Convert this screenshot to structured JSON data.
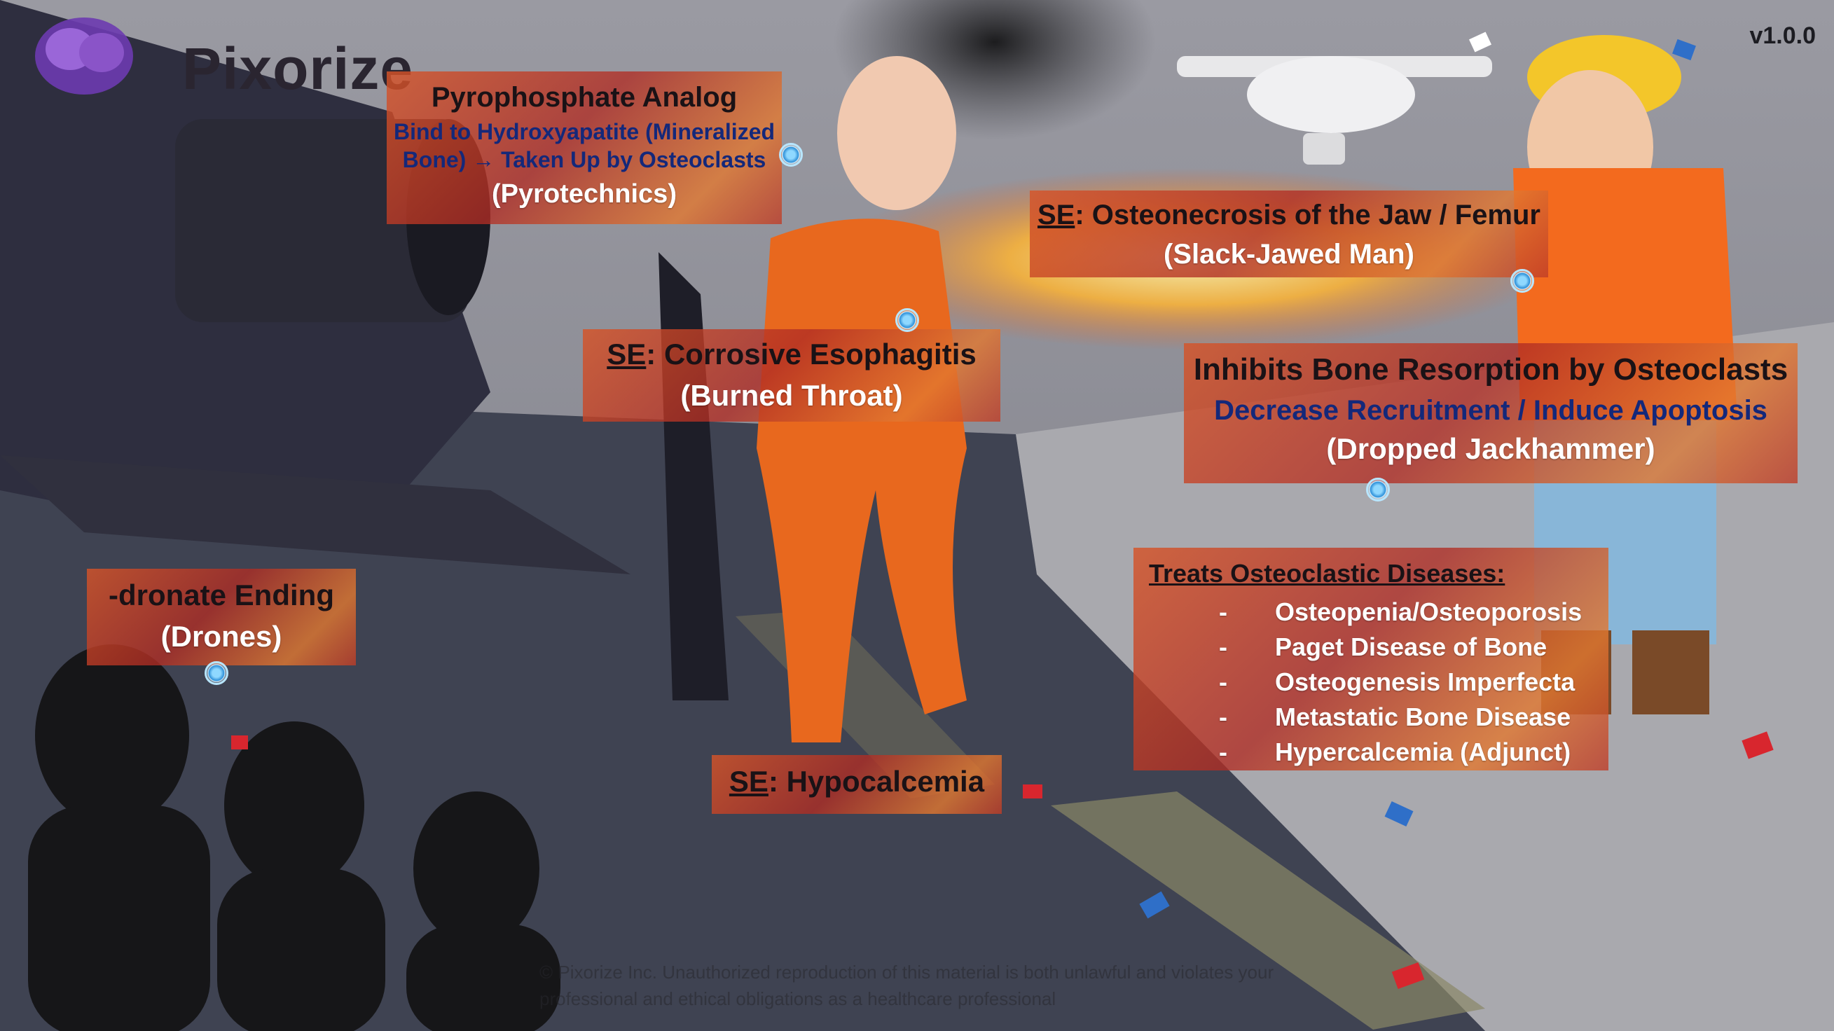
{
  "version": "v1.0.0",
  "logo": {
    "text": "Pixorize"
  },
  "labels": {
    "pyrophosphate": {
      "title": "Pyrophosphate Analog",
      "detail": "Bind to Hydroxyapatite (Mineralized Bone) → Taken Up by Osteoclasts",
      "mnemonic": "(Pyrotechnics)"
    },
    "esophagitis": {
      "prefix": "SE",
      "title": ": Corrosive Esophagitis",
      "mnemonic": "(Burned Throat)"
    },
    "osteonecrosis": {
      "prefix": "SE",
      "title": ": Osteonecrosis of the Jaw / Femur",
      "mnemonic": "(Slack-Jawed Man)"
    },
    "inhibits": {
      "title": "Inhibits Bone Resorption by Osteoclasts",
      "detail": "Decrease Recruitment / Induce Apoptosis",
      "mnemonic": "(Dropped Jackhammer)"
    },
    "dronate": {
      "title": "-dronate Ending",
      "mnemonic": "(Drones)"
    },
    "hypocalcemia": {
      "prefix": "SE",
      "title": ": Hypocalcemia"
    },
    "treats": {
      "title": "Treats Osteoclastic Diseases:",
      "items": [
        "Osteopenia/Osteoporosis",
        "Paget Disease of Bone",
        "Osteogenesis Imperfecta",
        "Metastatic Bone Disease",
        "Hypercalcemia (Adjunct)"
      ]
    }
  },
  "copyright": "© Pixorize Inc. Unauthorized reproduction of this material is both unlawful and violates your professional and ethical obligations as a healthcare professional",
  "colors": {
    "flame_orange": "#e0703a",
    "detail_blue": "#14287a",
    "street": "#3d4250",
    "sidewalk": "#a3a3a8"
  }
}
